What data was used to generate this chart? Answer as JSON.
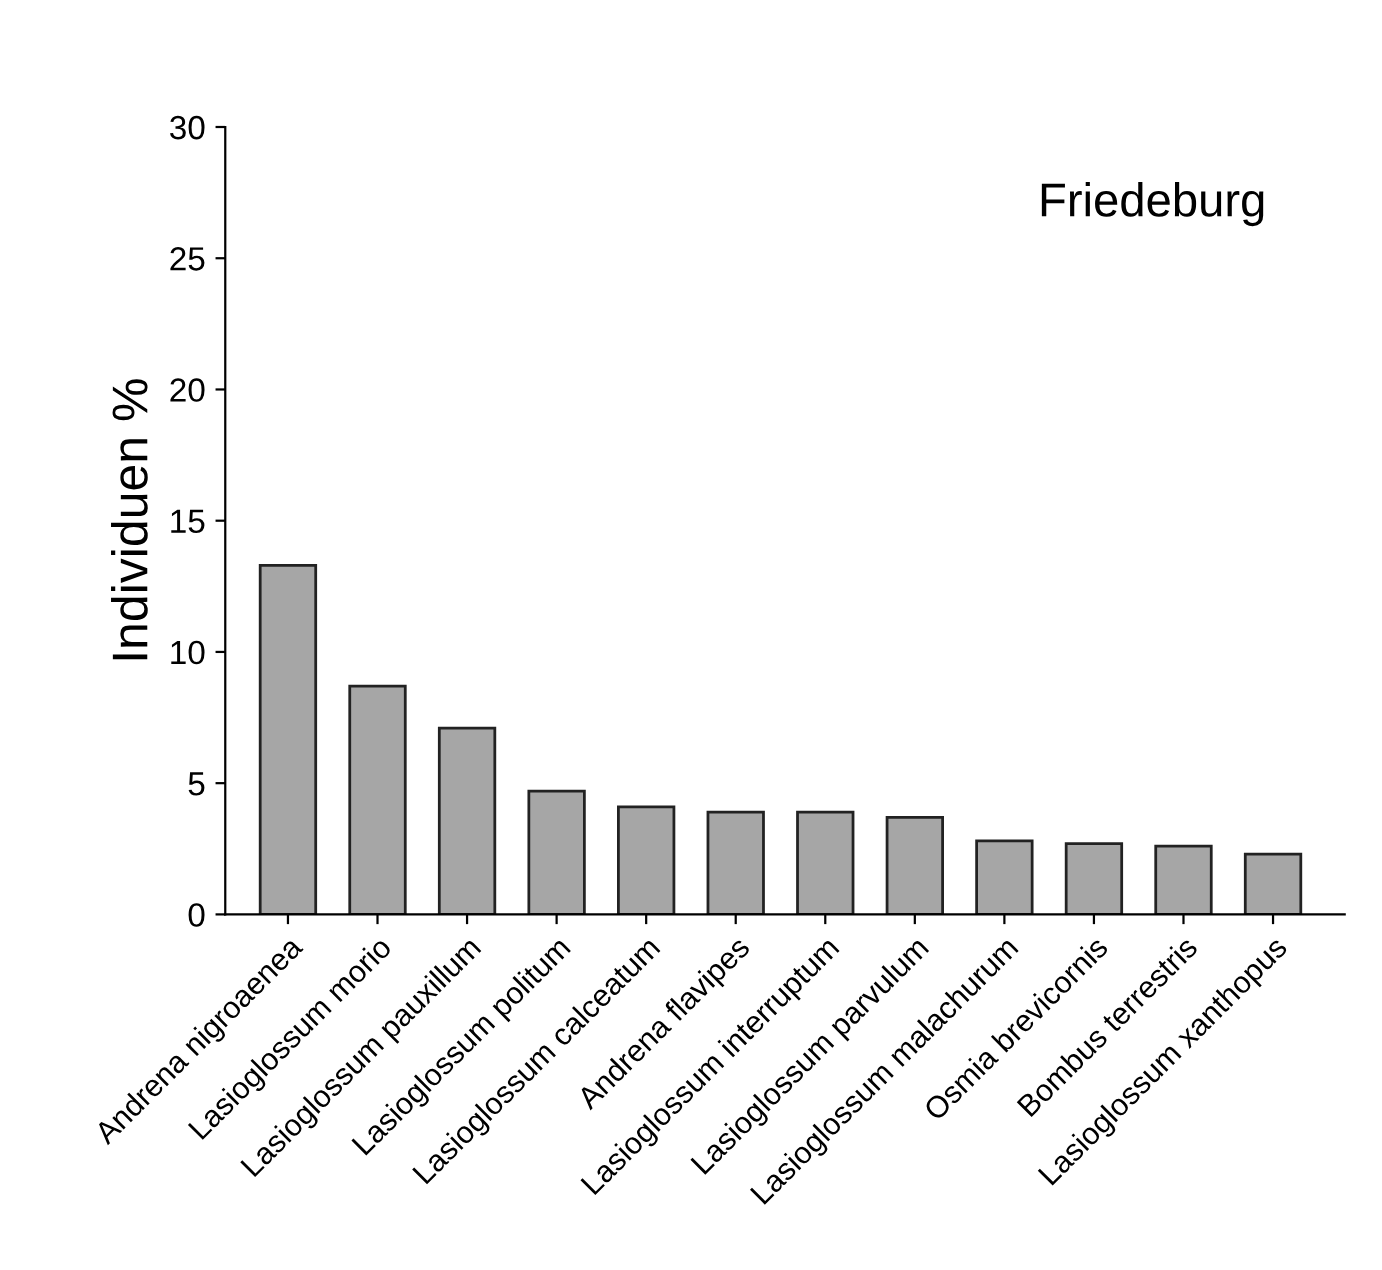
{
  "chart_data": {
    "type": "bar",
    "ylabel": "Individuen %",
    "categories": [
      "Andrena nigroaenea",
      "Lasioglossum morio",
      "Lasioglossum pauxillum",
      "Lasioglossum politum",
      "Lasioglossum calceatum",
      "Andrena flavipes",
      "Lasioglossum interruptum",
      "Lasioglossum parvulum",
      "Lasioglossum malachurum",
      "Osmia brevicornis",
      "Bombus terrestris",
      "Lasioglossum xanthopus"
    ],
    "values": [
      13.3,
      8.7,
      7.1,
      4.7,
      4.1,
      3.9,
      3.9,
      3.7,
      2.8,
      2.7,
      2.6,
      2.3
    ],
    "color": "#a6a6a6",
    "ylim": [
      0,
      30
    ],
    "yticks": [
      0,
      5,
      10,
      15,
      20,
      25,
      30
    ],
    "annotations": [
      "Friedeburg"
    ]
  }
}
